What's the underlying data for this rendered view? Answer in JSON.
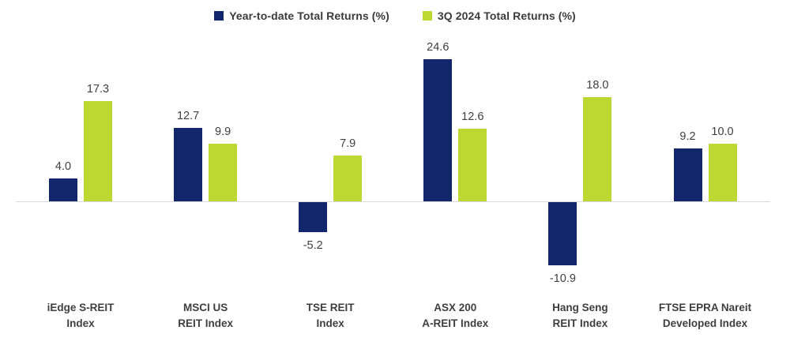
{
  "legend": {
    "items": [
      {
        "label": "Year-to-date Total Returns (%)"
      },
      {
        "label": "3Q 2024 Total Returns (%)"
      }
    ]
  },
  "colors": {
    "navy": "#12266B",
    "green": "#BED733",
    "axis": "#D9D9D9",
    "text": "#404040"
  },
  "chart_data": {
    "type": "bar",
    "title": "",
    "xlabel": "",
    "ylabel": "",
    "grid": false,
    "legend_position": "top",
    "baseline": 0,
    "ylim": [
      -13,
      27
    ],
    "value_labels_decimals": 1,
    "categories": [
      "iEdge S-REIT\nIndex",
      "MSCI US\nREIT Index",
      "TSE REIT\nIndex",
      "ASX 200\nA-REIT Index",
      "Hang Seng\nREIT Index",
      "FTSE EPRA Nareit\nDeveloped Index"
    ],
    "series": [
      {
        "name": "Year-to-date Total Returns (%)",
        "color": "#12266B",
        "values": [
          4.0,
          12.7,
          -5.2,
          24.6,
          -10.9,
          9.2
        ]
      },
      {
        "name": "3Q 2024 Total Returns (%)",
        "color": "#BED733",
        "values": [
          17.3,
          9.9,
          7.9,
          12.6,
          18.0,
          10.0
        ]
      }
    ]
  }
}
